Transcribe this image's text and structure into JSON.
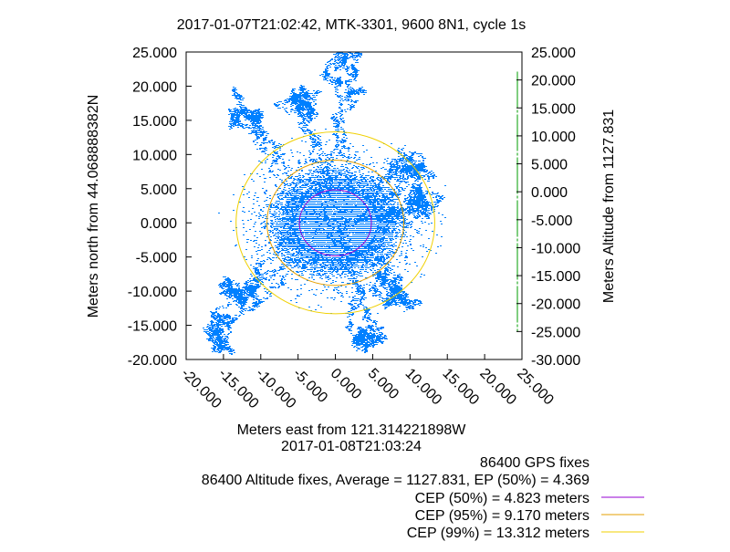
{
  "chart_data": {
    "type": "scatter",
    "title": "2017-01-07T21:02:42, MTK-3301, 9600 8N1, cycle 1s",
    "xlabel": "Meters east from 121.314221898W",
    "xlabel2": "2017-01-08T21:03:24",
    "ylabel": "Meters north from 44.068888382N",
    "y2label": "Meters Altitude from 1127.831",
    "xlim": [
      -20,
      25
    ],
    "ylim": [
      -20,
      25
    ],
    "y2lim": [
      -30,
      25
    ],
    "xticks": [
      "-20.000",
      "-15.000",
      "-10.000",
      "-5.000",
      "0.000",
      "5.000",
      "10.000",
      "15.000",
      "20.000",
      "25.000"
    ],
    "yticks": [
      "25.000",
      "20.000",
      "15.000",
      "10.000",
      "5.000",
      "0.000",
      "-5.000",
      "-10.000",
      "-15.000",
      "-20.000"
    ],
    "y2ticks": [
      "25.000",
      "20.000",
      "15.000",
      "10.000",
      "5.000",
      "0.000",
      "-5.000",
      "-10.000",
      "-15.000",
      "-20.000",
      "-25.000",
      "-30.000"
    ],
    "info": [
      "86400 GPS fixes",
      "86400 Altitude fixes, Average = 1127.831, EP (50%) = 4.369"
    ],
    "circles": [
      {
        "label": "CEP (50%) = 4.823 meters",
        "radius": 4.823,
        "color": "#9400d3"
      },
      {
        "label": "CEP (95%) = 9.170 meters",
        "radius": 9.17,
        "color": "#e69f00"
      },
      {
        "label": "CEP (99%) = 13.312 meters",
        "radius": 13.312,
        "color": "#f0d000"
      }
    ],
    "points_color": "#0080ff",
    "altitude_color": "#009e00",
    "altitude_range": [
      -25,
      21.5
    ],
    "core_radius": 6.5,
    "trail_targets": [
      [
        -12.5,
        16
      ],
      [
        -16,
        -16
      ],
      [
        1.5,
        23.5
      ],
      [
        11,
        8
      ],
      [
        5,
        -17
      ],
      [
        -14,
        -10
      ],
      [
        -4,
        18
      ],
      [
        9,
        -9
      ],
      [
        12,
        2
      ]
    ]
  }
}
